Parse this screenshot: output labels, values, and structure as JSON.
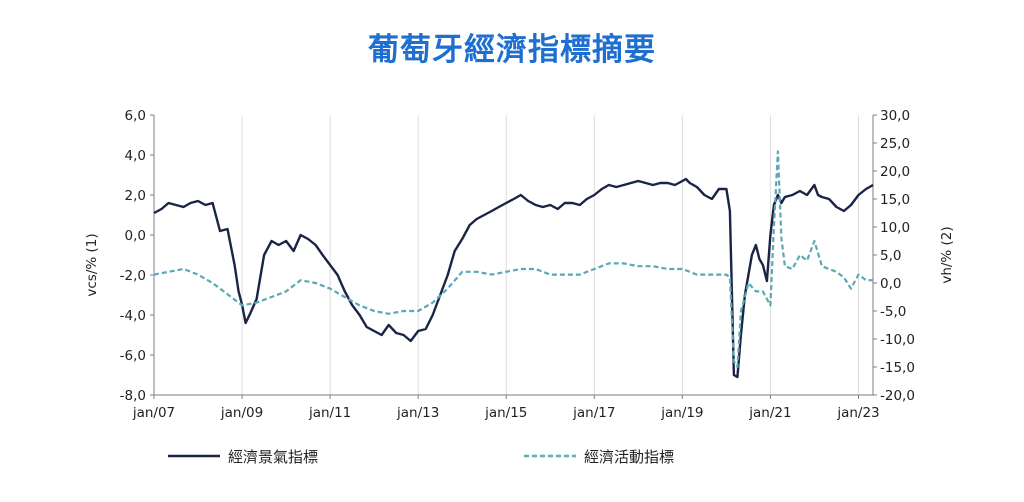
{
  "chart_data": {
    "type": "line",
    "title": "葡萄牙經濟指標摘要",
    "y_left": {
      "label": "vcs/% (1)",
      "range": [
        -8,
        6
      ],
      "ticks": [
        6,
        4,
        2,
        0,
        -2,
        -4,
        -6,
        -8
      ]
    },
    "y_right": {
      "label": "vh/% (2)",
      "range": [
        -20,
        30
      ],
      "ticks": [
        30,
        25,
        20,
        15,
        10,
        5,
        0,
        -5,
        -10,
        -15,
        -20
      ]
    },
    "x_axis": {
      "range": [
        2007.0,
        2023.33
      ],
      "ticks": [
        2007,
        2009,
        2011,
        2013,
        2015,
        2017,
        2019,
        2021,
        2023
      ],
      "tick_labels": [
        "jan/07",
        "jan/09",
        "jan/11",
        "jan/13",
        "jan/15",
        "jan/17",
        "jan/19",
        "jan/21",
        "jan/23"
      ]
    },
    "grid": {
      "vertical": true,
      "horizontal": false
    },
    "legend_position": "bottom",
    "series": [
      {
        "name": "經濟景氣指標",
        "axis": "left",
        "color": "#1b2445",
        "style": "solid",
        "x": [
          2007.0,
          2007.17,
          2007.33,
          2007.5,
          2007.67,
          2007.83,
          2008.0,
          2008.17,
          2008.33,
          2008.5,
          2008.67,
          2008.83,
          2008.92,
          2009.0,
          2009.08,
          2009.17,
          2009.33,
          2009.5,
          2009.67,
          2009.83,
          2010.0,
          2010.17,
          2010.33,
          2010.5,
          2010.67,
          2010.83,
          2011.0,
          2011.17,
          2011.33,
          2011.5,
          2011.67,
          2011.83,
          2012.0,
          2012.17,
          2012.33,
          2012.5,
          2012.67,
          2012.83,
          2013.0,
          2013.17,
          2013.33,
          2013.5,
          2013.67,
          2013.83,
          2014.0,
          2014.17,
          2014.33,
          2014.5,
          2014.67,
          2014.83,
          2015.0,
          2015.17,
          2015.33,
          2015.5,
          2015.67,
          2015.83,
          2016.0,
          2016.17,
          2016.33,
          2016.5,
          2016.67,
          2016.83,
          2017.0,
          2017.17,
          2017.33,
          2017.5,
          2017.67,
          2017.83,
          2018.0,
          2018.17,
          2018.33,
          2018.5,
          2018.67,
          2018.83,
          2019.0,
          2019.08,
          2019.17,
          2019.33,
          2019.5,
          2019.67,
          2019.83,
          2020.0,
          2020.08,
          2020.17,
          2020.25,
          2020.33,
          2020.42,
          2020.5,
          2020.58,
          2020.67,
          2020.75,
          2020.83,
          2020.92,
          2021.0,
          2021.08,
          2021.17,
          2021.25,
          2021.33,
          2021.5,
          2021.67,
          2021.83,
          2022.0,
          2022.08,
          2022.17,
          2022.33,
          2022.5,
          2022.67,
          2022.83,
          2023.0,
          2023.17,
          2023.33
        ],
        "values": [
          1.1,
          1.3,
          1.6,
          1.5,
          1.4,
          1.6,
          1.7,
          1.5,
          1.6,
          0.2,
          0.3,
          -1.5,
          -2.8,
          -3.5,
          -4.4,
          -4.0,
          -3.2,
          -1.0,
          -0.3,
          -0.5,
          -0.3,
          -0.8,
          0.0,
          -0.2,
          -0.5,
          -1.0,
          -1.5,
          -2.0,
          -2.8,
          -3.5,
          -4.0,
          -4.6,
          -4.8,
          -5.0,
          -4.5,
          -4.9,
          -5.0,
          -5.3,
          -4.8,
          -4.7,
          -4.0,
          -3.0,
          -2.0,
          -0.8,
          -0.2,
          0.5,
          0.8,
          1.0,
          1.2,
          1.4,
          1.6,
          1.8,
          2.0,
          1.7,
          1.5,
          1.4,
          1.5,
          1.3,
          1.6,
          1.6,
          1.5,
          1.8,
          2.0,
          2.3,
          2.5,
          2.4,
          2.5,
          2.6,
          2.7,
          2.6,
          2.5,
          2.6,
          2.6,
          2.5,
          2.7,
          2.8,
          2.6,
          2.4,
          2.0,
          1.8,
          2.3,
          2.3,
          1.2,
          -7.0,
          -7.1,
          -5.0,
          -3.0,
          -2.0,
          -1.0,
          -0.5,
          -1.2,
          -1.5,
          -2.3,
          0.0,
          1.5,
          2.0,
          1.6,
          1.9,
          2.0,
          2.2,
          2.0,
          2.5,
          2.0,
          1.9,
          1.8,
          1.4,
          1.2,
          1.5,
          2.0,
          2.3,
          2.5
        ]
      },
      {
        "name": "經濟活動指標",
        "axis": "right",
        "color": "#5aa9b5",
        "style": "dashed",
        "x": [
          2007.0,
          2007.33,
          2007.67,
          2008.0,
          2008.33,
          2008.67,
          2009.0,
          2009.33,
          2009.67,
          2010.0,
          2010.33,
          2010.67,
          2011.0,
          2011.33,
          2011.67,
          2012.0,
          2012.33,
          2012.67,
          2013.0,
          2013.33,
          2013.67,
          2014.0,
          2014.33,
          2014.67,
          2015.0,
          2015.33,
          2015.67,
          2016.0,
          2016.33,
          2016.67,
          2017.0,
          2017.33,
          2017.67,
          2018.0,
          2018.33,
          2018.67,
          2019.0,
          2019.33,
          2019.67,
          2020.0,
          2020.08,
          2020.17,
          2020.25,
          2020.33,
          2020.42,
          2020.5,
          2020.67,
          2020.83,
          2021.0,
          2021.08,
          2021.17,
          2021.25,
          2021.33,
          2021.5,
          2021.67,
          2021.83,
          2022.0,
          2022.17,
          2022.33,
          2022.5,
          2022.67,
          2022.83,
          2023.0,
          2023.17,
          2023.33
        ],
        "values": [
          1.5,
          2.0,
          2.5,
          1.5,
          0.0,
          -2.0,
          -4.0,
          -3.5,
          -2.5,
          -1.5,
          0.5,
          0.0,
          -1.0,
          -2.5,
          -4.0,
          -5.0,
          -5.5,
          -5.0,
          -5.0,
          -3.5,
          -1.0,
          2.0,
          2.0,
          1.5,
          2.0,
          2.5,
          2.5,
          1.5,
          1.5,
          1.5,
          2.5,
          3.5,
          3.5,
          3.0,
          3.0,
          2.5,
          2.5,
          1.5,
          1.5,
          1.5,
          1.0,
          -14.0,
          -15.0,
          -5.0,
          -2.5,
          0.0,
          -1.5,
          -1.5,
          -4.0,
          10.0,
          23.5,
          8.0,
          3.0,
          2.5,
          5.0,
          4.0,
          7.5,
          3.0,
          2.5,
          2.0,
          1.0,
          -1.0,
          1.5,
          0.5,
          0.5
        ]
      }
    ]
  }
}
